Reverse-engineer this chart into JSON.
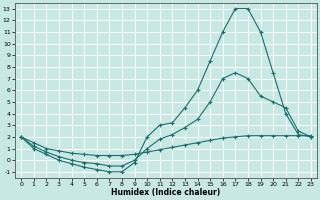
{
  "xlabel": "Humidex (Indice chaleur)",
  "xlim": [
    -0.5,
    23.5
  ],
  "ylim": [
    -1.5,
    13.5
  ],
  "xticks": [
    0,
    1,
    2,
    3,
    4,
    5,
    6,
    7,
    8,
    9,
    10,
    11,
    12,
    13,
    14,
    15,
    16,
    17,
    18,
    19,
    20,
    21,
    22,
    23
  ],
  "yticks": [
    -1,
    0,
    1,
    2,
    3,
    4,
    5,
    6,
    7,
    8,
    9,
    10,
    11,
    12,
    13
  ],
  "bg_color": "#c8e8e4",
  "line_color": "#1a6e6e",
  "grid_color": "#ffffff",
  "line1_x": [
    0,
    1,
    2,
    3,
    4,
    5,
    6,
    7,
    8,
    9,
    10,
    11,
    12,
    13,
    14,
    15,
    16,
    17,
    18,
    19,
    20,
    21,
    22,
    23
  ],
  "line1_y": [
    2,
    1,
    0.5,
    0.0,
    -0.3,
    -0.6,
    -0.8,
    -1.0,
    -1.0,
    -0.2,
    2.0,
    3.0,
    3.2,
    4.5,
    6.0,
    8.5,
    11.0,
    13.0,
    13.0,
    11.0,
    7.5,
    4.0,
    2.2,
    2.0
  ],
  "line2_x": [
    0,
    1,
    2,
    3,
    4,
    5,
    6,
    7,
    8,
    9,
    10,
    11,
    12,
    13,
    14,
    15,
    16,
    17,
    18,
    19,
    20,
    21,
    22,
    23
  ],
  "line2_y": [
    2,
    1.2,
    0.7,
    0.3,
    0.0,
    -0.2,
    -0.3,
    -0.5,
    -0.5,
    0.0,
    1.0,
    1.8,
    2.2,
    2.8,
    3.5,
    5.0,
    7.0,
    7.5,
    7.0,
    5.5,
    5.0,
    4.5,
    2.5,
    2.0
  ],
  "line3_x": [
    0,
    1,
    2,
    3,
    4,
    5,
    6,
    7,
    8,
    9,
    10,
    11,
    12,
    13,
    14,
    15,
    16,
    17,
    18,
    19,
    20,
    21,
    22,
    23
  ],
  "line3_y": [
    2,
    1.5,
    1.0,
    0.8,
    0.6,
    0.5,
    0.4,
    0.4,
    0.4,
    0.5,
    0.7,
    0.9,
    1.1,
    1.3,
    1.5,
    1.7,
    1.9,
    2.0,
    2.1,
    2.1,
    2.1,
    2.1,
    2.1,
    2.1
  ]
}
